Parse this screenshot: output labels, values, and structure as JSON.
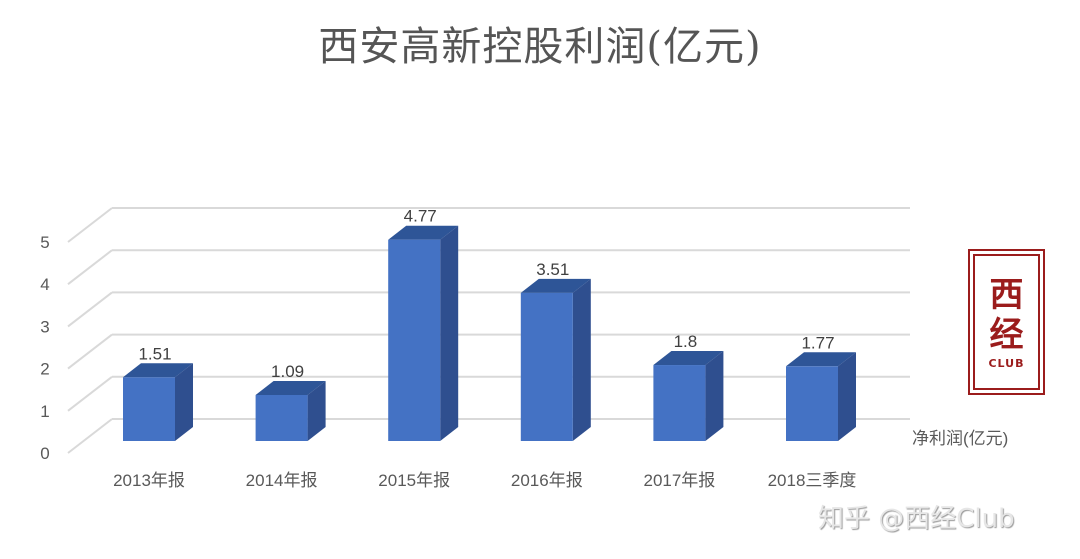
{
  "title": "西安高新控股利润(亿元)",
  "legend": {
    "label": "净利润(亿元)",
    "color": "#4472c4"
  },
  "logo": {
    "line1": "西",
    "line2": "经",
    "line3": "CLUB",
    "color": "#9b1c1c"
  },
  "watermark": "知乎 @西经Club",
  "colors": {
    "bar_front": "#4472c4",
    "bar_side": "#2f4f8f",
    "bar_top": "#2e5597",
    "grid": "#d9d9d9",
    "text": "#595959"
  },
  "chart_data": {
    "type": "bar",
    "title": "西安高新控股利润(亿元)",
    "categories": [
      "2013年报",
      "2014年报",
      "2015年报",
      "2016年报",
      "2017年报",
      "2018三季度"
    ],
    "series": [
      {
        "name": "净利润(亿元)",
        "values": [
          1.51,
          1.09,
          4.77,
          3.51,
          1.8,
          1.77
        ]
      }
    ],
    "data_labels": [
      "1.51",
      "1.09",
      "4.77",
      "3.51",
      "1.8",
      "1.77"
    ],
    "xlabel": "",
    "ylabel": "",
    "yticks": [
      0,
      1,
      2,
      3,
      4,
      5
    ],
    "ylim": [
      0,
      5
    ],
    "grid": true,
    "legend_position": "right",
    "style": "3d-column"
  }
}
